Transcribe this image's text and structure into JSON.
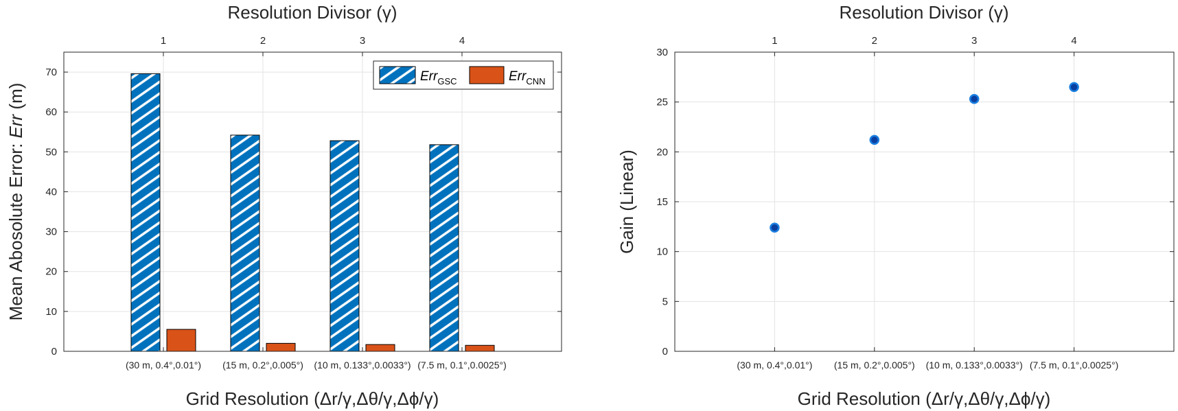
{
  "colors": {
    "gsc": "#0072BD",
    "cnn": "#D95319",
    "point": "#0072BD",
    "point_center": "#0a3fa0",
    "grid": "#e3e3e3",
    "axis": "#262626"
  },
  "chart_data": [
    {
      "type": "bar",
      "top_axis_title": "Resolution Divisor (γ)",
      "top_ticks": [
        "1",
        "2",
        "3",
        "4"
      ],
      "categories": [
        "(30 m, 0.4°,0.01°)",
        "(15 m, 0.2°,0.005°)",
        "(10 m, 0.133°,0.0033°)",
        "(7.5 m, 0.1°,0.0025°)"
      ],
      "xlabel": "Grid Resolution (Δr/γ,Δθ/γ,Δϕ/γ)",
      "ylabel_prefix": "Mean Abosolute Error: ",
      "ylabel_var": "Err",
      "ylabel_suffix": " (m)",
      "ylim": [
        0,
        75
      ],
      "yticks": [
        0,
        10,
        20,
        30,
        40,
        50,
        60,
        70
      ],
      "grid": true,
      "legend_position": "top-right",
      "series": [
        {
          "name": "Err",
          "subscript": "GSC",
          "pattern": "hatched",
          "values": [
            69.6,
            54.2,
            52.8,
            51.8
          ]
        },
        {
          "name": "Err",
          "subscript": "CNN",
          "pattern": "solid",
          "values": [
            5.5,
            2.0,
            1.7,
            1.5
          ]
        }
      ]
    },
    {
      "type": "scatter",
      "top_axis_title": "Resolution Divisor (γ)",
      "top_ticks": [
        "1",
        "2",
        "3",
        "4"
      ],
      "categories": [
        "(30 m, 0.4°,0.01°)",
        "(15 m, 0.2°,0.005°)",
        "(10 m, 0.133°,0.0033°)",
        "(7.5 m, 0.1°,0.0025°)"
      ],
      "xlabel": "Grid Resolution (Δr/γ,Δθ/γ,Δϕ/γ)",
      "ylabel": "Gain (Linear)",
      "ylim": [
        0,
        30
      ],
      "yticks": [
        0,
        5,
        10,
        15,
        20,
        25,
        30
      ],
      "grid": true,
      "values": [
        12.4,
        21.2,
        25.3,
        26.5
      ]
    }
  ]
}
